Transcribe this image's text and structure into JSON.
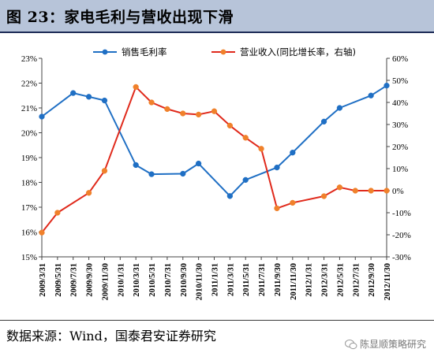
{
  "header": {
    "title": "图 23：家电毛利与营收出现下滑"
  },
  "footer": {
    "source": "数据来源：Wind，国泰君安证券研究",
    "watermark": "陈显顺策略研究"
  },
  "colors": {
    "margin_series": "#1f6fc4",
    "revenue_series": "#e02a1c",
    "revenue_marker": "#f0812b",
    "title_band": "#b7c4d9"
  },
  "chart_data": {
    "type": "line",
    "title": "",
    "legend_position": "top",
    "grid": false,
    "x": [
      "2009/3/31",
      "2009/5/31",
      "2009/7/31",
      "2009/9/30",
      "2009/11/30",
      "2010/1/31",
      "2010/3/31",
      "2010/5/31",
      "2010/7/31",
      "2010/9/30",
      "2010/11/30",
      "2011/1/31",
      "2011/3/31",
      "2011/5/31",
      "2011/7/31",
      "2011/9/30",
      "2011/11/30",
      "2012/1/31",
      "2012/3/31",
      "2012/5/31",
      "2012/7/31",
      "2012/9/30",
      "2012/11/30"
    ],
    "left_axis": {
      "ylim": [
        15,
        23
      ],
      "ticks": [
        "15%",
        "16%",
        "17%",
        "18%",
        "19%",
        "20%",
        "21%",
        "22%",
        "23%"
      ]
    },
    "right_axis": {
      "ylim": [
        -30,
        60
      ],
      "ticks": [
        "-30%",
        "-20%",
        "-10%",
        "0%",
        "10%",
        "20%",
        "30%",
        "40%",
        "50%",
        "60%"
      ]
    },
    "series": [
      {
        "name": "销售毛利率",
        "axis": "left",
        "color": "#1f6fc4",
        "x": [
          "2009/3/31",
          "2009/7/31",
          "2009/9/30",
          "2009/11/30",
          "2010/3/31",
          "2010/5/31",
          "2010/9/30",
          "2010/11/30",
          "2011/3/31",
          "2011/5/31",
          "2011/9/30",
          "2011/11/30",
          "2012/3/31",
          "2012/5/31",
          "2012/9/30",
          "2012/11/30"
        ],
        "values": [
          20.65,
          21.6,
          21.45,
          21.3,
          18.7,
          18.33,
          18.35,
          18.76,
          17.45,
          18.1,
          18.6,
          19.2,
          20.45,
          21.0,
          21.5,
          21.9
        ]
      },
      {
        "name": "营业收入(同比增长率，右轴)",
        "axis": "right",
        "color": "#e02a1c",
        "marker_color": "#f0812b",
        "x": [
          "2009/3/31",
          "2009/5/31",
          "2009/9/30",
          "2009/11/30",
          "2010/3/31",
          "2010/5/31",
          "2010/7/31",
          "2010/9/30",
          "2010/11/30",
          "2011/1/31",
          "2011/3/31",
          "2011/5/31",
          "2011/7/31",
          "2011/9/30",
          "2011/11/30",
          "2012/3/31",
          "2012/5/31",
          "2012/7/31",
          "2012/9/30",
          "2012/11/30"
        ],
        "values": [
          -19,
          -10,
          -1,
          9,
          47,
          40,
          37,
          35,
          34.5,
          36,
          29.5,
          24,
          19,
          -8,
          -5.5,
          -2.5,
          1.5,
          0,
          0,
          0
        ]
      }
    ]
  }
}
